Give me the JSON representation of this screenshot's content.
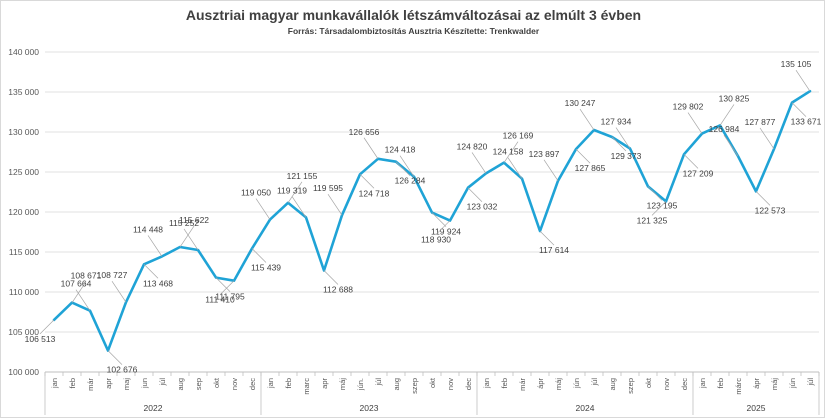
{
  "chart_data": {
    "type": "line",
    "title": "Ausztriai magyar munkavállalók létszámváltozásai az elmúlt 3 évben",
    "subtitle": "Forrás: Társadalombiztosítás Ausztria  Készítette: Trenkwalder",
    "ylim": [
      100000,
      140000
    ],
    "yticks": [
      "100 000",
      "105 000",
      "110 000",
      "115 000",
      "120 000",
      "125 000",
      "130 000",
      "135 000",
      "140 000"
    ],
    "grid": true,
    "legend": "none",
    "line_color": "#1fa3d6",
    "years": [
      {
        "label": "2022",
        "months": 12
      },
      {
        "label": "2023",
        "months": 12
      },
      {
        "label": "2024",
        "months": 12
      },
      {
        "label": "2025",
        "months": 7
      }
    ],
    "categories": [
      "jan",
      "feb",
      "már",
      "apr",
      "maj",
      "jun",
      "júl",
      "aug",
      "sep",
      "okt",
      "nov",
      "dec",
      "jan",
      "feb",
      "marc",
      "apr",
      "máj",
      "jún.",
      "júl",
      "aug",
      "szep",
      "okt",
      "nov",
      "dec",
      "jan",
      "feb",
      "már",
      "ápr",
      "máj",
      "jún",
      "júl",
      "aug",
      "szep",
      "okt",
      "nov",
      "dec",
      "jan",
      "feb",
      "márc",
      "ápr",
      "máj",
      "jún",
      "júl"
    ],
    "values": [
      106513,
      108671,
      107664,
      102676,
      108727,
      113468,
      114448,
      115622,
      115252,
      111795,
      111410,
      115439,
      119050,
      121155,
      119319,
      112688,
      119595,
      124718,
      126656,
      126284,
      124418,
      119924,
      118930,
      123032,
      124820,
      126169,
      124158,
      117614,
      123897,
      127865,
      130247,
      129373,
      127934,
      123195,
      121325,
      127209,
      129802,
      130825,
      126984,
      122573,
      127877,
      133671,
      135105
    ],
    "data_labels": [
      "106 513",
      "108 671",
      "107 664",
      "102 676",
      "108 727",
      "113 468",
      "114 448",
      "115 622",
      "115 252",
      "111 795",
      "111 410",
      "115 439",
      "119 050",
      "121 155",
      "119 319",
      "112 688",
      "119 595",
      "124 718",
      "126 656",
      "126 284",
      "124 418",
      "119 924",
      "118 930",
      "123 032",
      "124 820",
      "126 169",
      "124 158",
      "117 614",
      "123 897",
      "127 865",
      "130 247",
      "129 373",
      "127 934",
      "123 195",
      "121 325",
      "127 209",
      "129 802",
      "130 825",
      "126 984",
      "122 573",
      "127 877",
      "133 671",
      "135 105"
    ]
  }
}
